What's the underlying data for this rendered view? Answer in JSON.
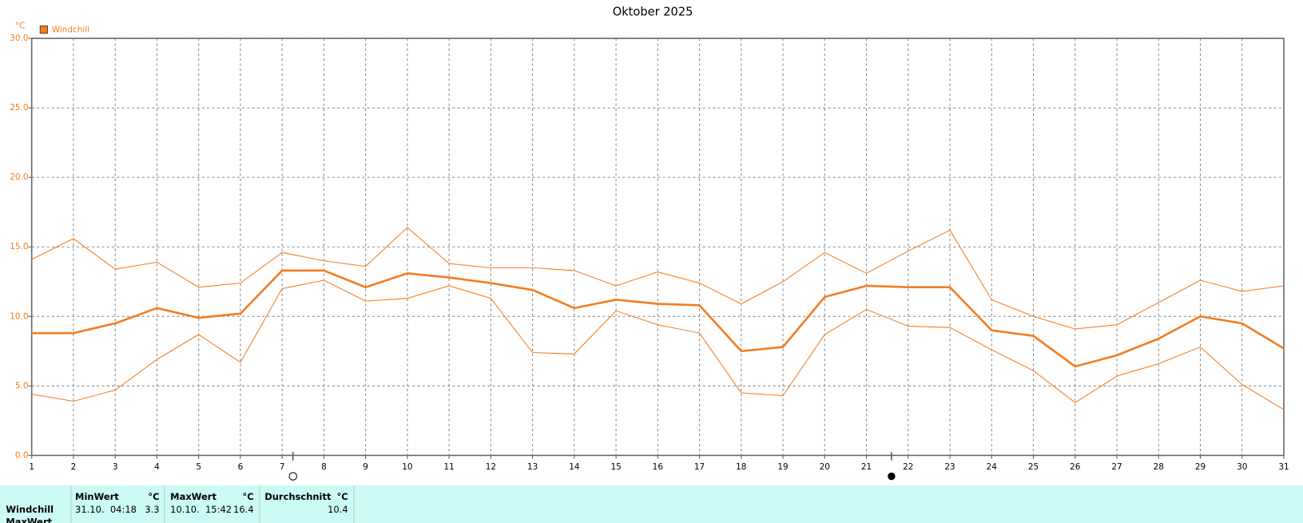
{
  "chart_data": {
    "type": "line",
    "title": "Oktober 2025",
    "y_unit": "°C",
    "legend": "top-left",
    "grid": true,
    "x": [
      1,
      2,
      3,
      4,
      5,
      6,
      7,
      8,
      9,
      10,
      11,
      12,
      13,
      14,
      15,
      16,
      17,
      18,
      19,
      20,
      21,
      22,
      23,
      24,
      25,
      26,
      27,
      28,
      29,
      30,
      31
    ],
    "xlim": [
      1,
      31
    ],
    "xticks": [
      1,
      2,
      3,
      4,
      5,
      6,
      7,
      8,
      9,
      10,
      11,
      12,
      13,
      14,
      15,
      16,
      17,
      18,
      19,
      20,
      21,
      22,
      23,
      24,
      25,
      26,
      27,
      28,
      29,
      30,
      31
    ],
    "ylim": [
      0,
      30
    ],
    "yticks": [
      {
        "value": 0,
        "label": "0.0"
      },
      {
        "value": 5,
        "label": "5.0"
      },
      {
        "value": 10,
        "label": "10.0"
      },
      {
        "value": 15,
        "label": "15.0"
      },
      {
        "value": 20,
        "label": "20.0"
      },
      {
        "value": 25,
        "label": "25.0"
      },
      {
        "value": 30,
        "label": "30.0"
      }
    ],
    "series": [
      {
        "name": "Windchill",
        "color": "#f47c20",
        "width": 2.5,
        "values": [
          8.8,
          8.8,
          9.5,
          10.6,
          9.9,
          10.2,
          13.3,
          13.3,
          12.1,
          13.1,
          12.8,
          12.4,
          11.9,
          10.6,
          11.2,
          10.9,
          10.8,
          7.5,
          7.8,
          11.4,
          12.2,
          12.1,
          12.1,
          9.0,
          8.6,
          6.4,
          7.2,
          8.4,
          10.0,
          9.5,
          7.7
        ]
      },
      {
        "color": "#f47c20",
        "width": 1,
        "values": [
          14.1,
          15.6,
          13.4,
          13.9,
          12.1,
          12.4,
          14.6,
          14.0,
          13.6,
          16.4,
          13.8,
          13.5,
          13.5,
          13.3,
          12.2,
          13.2,
          12.4,
          10.9,
          12.5,
          14.6,
          13.1,
          14.7,
          16.2,
          11.2,
          10.0,
          9.1,
          9.4,
          11.0,
          12.6,
          11.8,
          12.2
        ]
      },
      {
        "color": "#f47c20",
        "width": 1,
        "values": [
          4.4,
          3.9,
          4.7,
          6.9,
          8.7,
          6.7,
          12.0,
          12.6,
          11.1,
          11.3,
          12.2,
          11.3,
          7.4,
          7.3,
          10.4,
          9.4,
          8.8,
          4.5,
          4.3,
          8.7,
          10.5,
          9.3,
          9.2,
          7.6,
          6.1,
          3.8,
          5.7,
          6.6,
          7.8,
          5.1,
          3.3
        ]
      }
    ]
  },
  "table": {
    "header": [
      {
        "label": "MinWert",
        "unit": "°C"
      },
      {
        "label": "MaxWert",
        "unit": "°C"
      },
      {
        "label": "Durchschnitt",
        "unit": "°C"
      }
    ],
    "rows": [
      {
        "label": "Windchill",
        "min_time": "31.10.  04:18",
        "min": "3.3",
        "max_time": "10.10.  15:42",
        "max": "16.4",
        "avg": "10.4"
      },
      {
        "label": "MaxWert"
      }
    ]
  }
}
